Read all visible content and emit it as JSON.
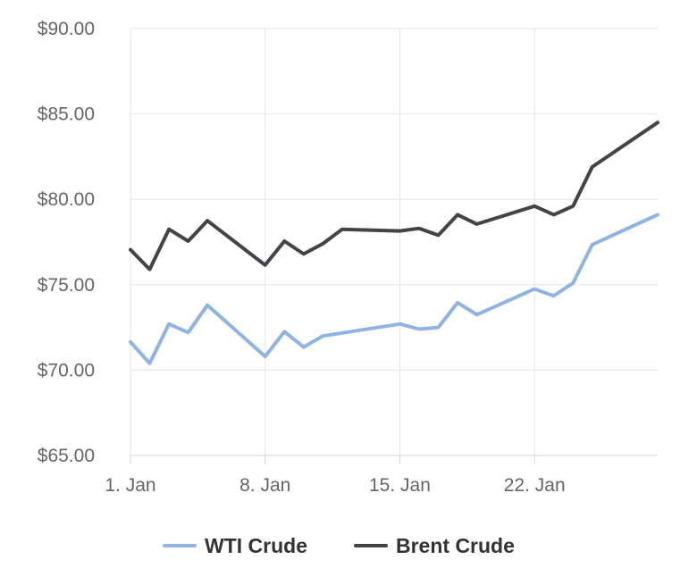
{
  "chart_data": {
    "type": "line",
    "title": "",
    "xlabel": "",
    "ylabel": "",
    "ylim": [
      65,
      90
    ],
    "y_ticks": [
      "$65.00",
      "$70.00",
      "$75.00",
      "$80.00",
      "$85.00",
      "$90.00"
    ],
    "y_tick_values": [
      65,
      70,
      75,
      80,
      85,
      90
    ],
    "x_ticks": [
      "1. Jan",
      "8. Jan",
      "15. Jan",
      "22. Jan"
    ],
    "x_tick_days": [
      1,
      8,
      15,
      22
    ],
    "xlim": [
      1,
      28.4
    ],
    "grid": true,
    "legend_position": "bottom",
    "series": [
      {
        "name": "WTI Crude",
        "color": "#8fb4e3",
        "x": [
          1,
          2,
          3,
          4,
          5,
          8,
          9,
          10,
          11,
          15,
          16,
          17,
          18,
          19,
          22,
          23,
          24,
          25,
          28.4
        ],
        "values": [
          71.65,
          70.4,
          72.7,
          72.2,
          73.8,
          70.8,
          72.25,
          71.35,
          72.0,
          72.7,
          72.4,
          72.5,
          73.95,
          73.25,
          74.75,
          74.35,
          75.1,
          77.35,
          79.1
        ]
      },
      {
        "name": "Brent Crude",
        "color": "#434348",
        "x": [
          1,
          2,
          3,
          4,
          5,
          8,
          9,
          10,
          11,
          12,
          15,
          16,
          17,
          18,
          19,
          22,
          23,
          24,
          25,
          28.4
        ],
        "values": [
          77.05,
          75.9,
          78.25,
          77.55,
          78.75,
          76.15,
          77.55,
          76.8,
          77.4,
          78.25,
          78.15,
          78.3,
          77.9,
          79.1,
          78.55,
          79.6,
          79.1,
          79.6,
          81.9,
          84.5
        ]
      }
    ]
  }
}
